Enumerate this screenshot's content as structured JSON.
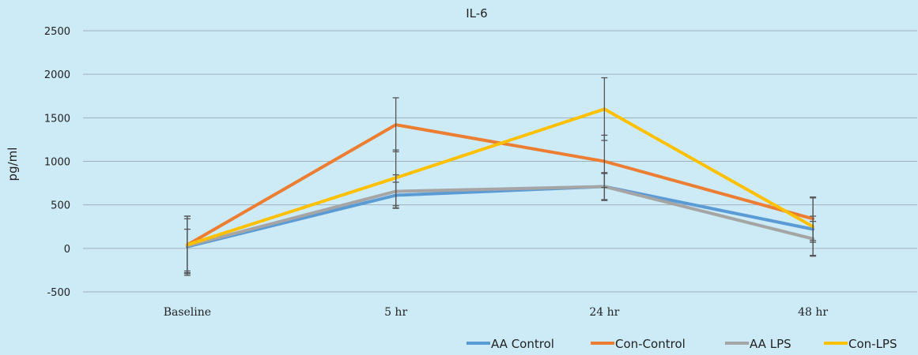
{
  "chart_data": {
    "type": "line",
    "title": "IL-6",
    "xlabel": "",
    "ylabel": "pg/ml",
    "ylim": [
      -500,
      2500
    ],
    "yticks": [
      -500,
      0,
      500,
      1000,
      1500,
      2000,
      2500
    ],
    "grid": true,
    "legend_position": "bottom-right",
    "categories": [
      "Baseline",
      "5 hr",
      "24 hr",
      "48 hr"
    ],
    "series": [
      {
        "name": "AA Control",
        "color": "#5b9bd5",
        "values": [
          20,
          610,
          710,
          220
        ],
        "error_low": [
          300,
          150,
          150,
          150
        ],
        "error_high": [
          200,
          150,
          150,
          150
        ]
      },
      {
        "name": "Con-Control",
        "color": "#ed7d31",
        "values": [
          40,
          1420,
          1000,
          340
        ],
        "error_low": [
          330,
          310,
          300,
          250
        ],
        "error_high": [
          330,
          310,
          300,
          250
        ]
      },
      {
        "name": "AA LPS",
        "color": "#a5a5a5",
        "values": [
          30,
          655,
          710,
          110
        ],
        "error_low": [
          340,
          190,
          160,
          200
        ],
        "error_high": [
          340,
          190,
          160,
          200
        ]
      },
      {
        "name": "Con-LPS",
        "color": "#ffc000",
        "values": [
          40,
          810,
          1600,
          250
        ],
        "error_low": [
          300,
          320,
          360,
          330
        ],
        "error_high": [
          300,
          320,
          360,
          330
        ]
      }
    ]
  }
}
